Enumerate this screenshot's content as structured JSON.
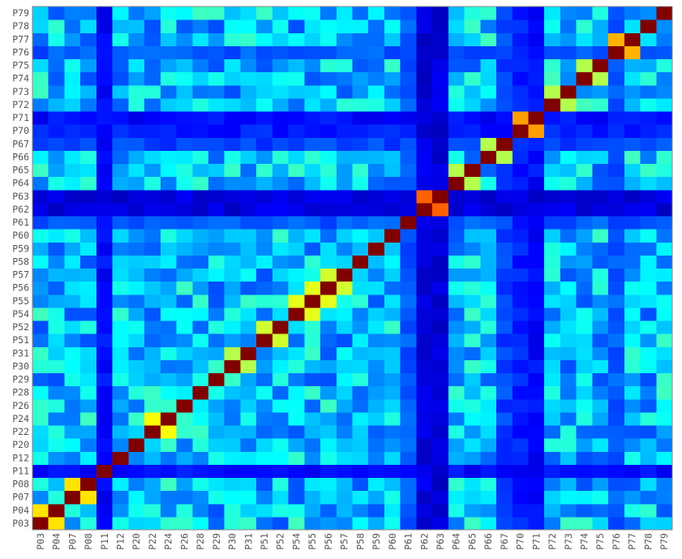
{
  "chart_data": {
    "type": "heatmap",
    "title": "",
    "xlabel": "",
    "ylabel": "",
    "colormap": "jet",
    "value_range": [
      0,
      1
    ],
    "colors": {
      "low": "#00007f",
      "mid": "#7fff7f",
      "high": "#7f0000",
      "diagonal": "#800000"
    },
    "labels": [
      "P03",
      "P04",
      "P07",
      "P08",
      "P11",
      "P12",
      "P20",
      "P22",
      "P24",
      "P26",
      "P28",
      "P29",
      "P30",
      "P31",
      "P51",
      "P52",
      "P54",
      "P55",
      "P56",
      "P57",
      "P58",
      "P59",
      "P60",
      "P61",
      "P62",
      "P63",
      "P64",
      "P65",
      "P66",
      "P67",
      "P70",
      "P71",
      "P72",
      "P73",
      "P74",
      "P75",
      "P76",
      "P77",
      "P78",
      "P79"
    ],
    "strong_pairs": [
      {
        "a": "P03",
        "b": "P04",
        "value": 0.65
      },
      {
        "a": "P07",
        "b": "P08",
        "value": 0.65
      },
      {
        "a": "P22",
        "b": "P24",
        "value": 0.62
      },
      {
        "a": "P54",
        "b": "P55",
        "value": 0.6
      },
      {
        "a": "P55",
        "b": "P56",
        "value": 0.6
      },
      {
        "a": "P56",
        "b": "P57",
        "value": 0.58
      },
      {
        "a": "P51",
        "b": "P52",
        "value": 0.58
      },
      {
        "a": "P30",
        "b": "P31",
        "value": 0.55
      },
      {
        "a": "P62",
        "b": "P63",
        "value": 0.78
      },
      {
        "a": "P70",
        "b": "P71",
        "value": 0.72
      },
      {
        "a": "P76",
        "b": "P77",
        "value": 0.7
      },
      {
        "a": "P64",
        "b": "P65",
        "value": 0.55
      },
      {
        "a": "P66",
        "b": "P67",
        "value": 0.55
      },
      {
        "a": "P72",
        "b": "P73",
        "value": 0.55
      },
      {
        "a": "P74",
        "b": "P75",
        "value": 0.55
      }
    ],
    "weak_labels": [
      {
        "label": "P11",
        "level": 0.1
      },
      {
        "label": "P62",
        "level": 0.06
      },
      {
        "label": "P63",
        "level": 0.06
      },
      {
        "label": "P70",
        "level": 0.12
      },
      {
        "label": "P71",
        "level": 0.1
      },
      {
        "label": "P67",
        "level": 0.16
      },
      {
        "label": "P61",
        "level": 0.18
      },
      {
        "label": "P76",
        "level": 0.18
      }
    ]
  }
}
